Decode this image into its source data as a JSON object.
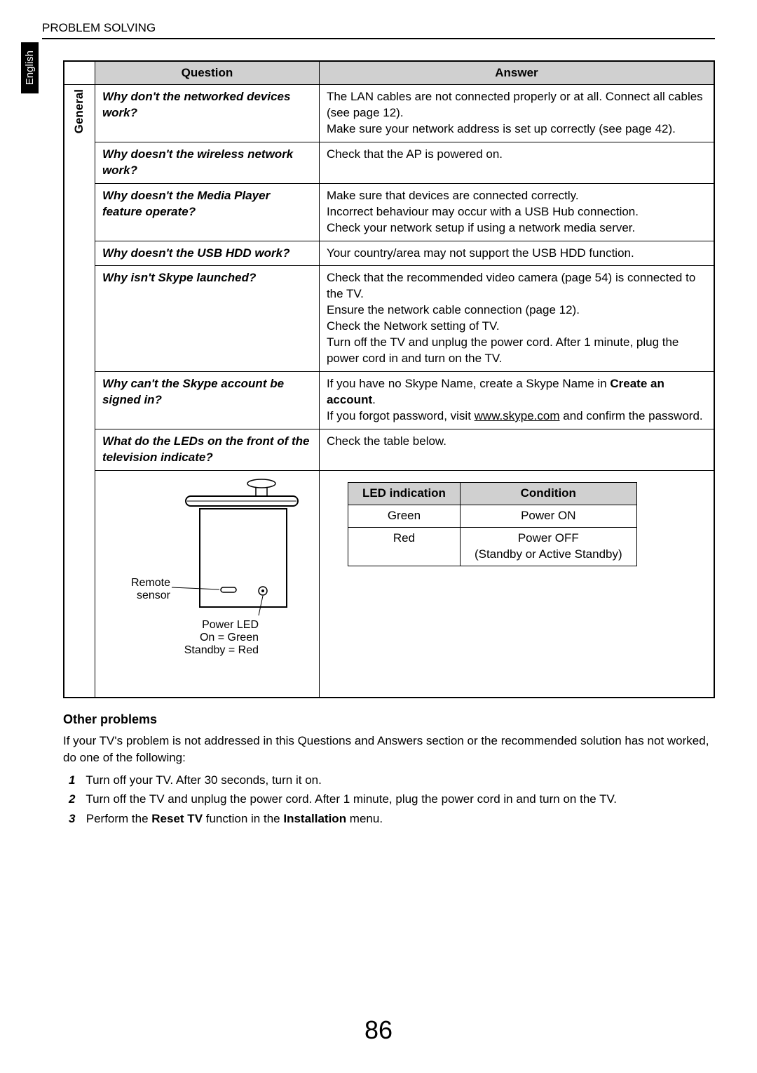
{
  "header": {
    "section": "PROBLEM SOLVING"
  },
  "sideTab": "English",
  "table": {
    "headers": {
      "question": "Question",
      "answer": "Answer"
    },
    "category": "General",
    "rows": [
      {
        "q": "Why don't the networked devices work?",
        "a": "The LAN cables are not connected properly or at all. Connect all cables (see page 12).\nMake sure your network address is set up correctly (see page 42)."
      },
      {
        "q": "Why doesn't the wireless network work?",
        "a": "Check that the AP is powered on."
      },
      {
        "q": "Why doesn't the Media Player feature operate?",
        "a": "Make sure that devices are connected correctly.\nIncorrect behaviour may occur with a USB Hub connection.\nCheck your network setup if using a network media server."
      },
      {
        "q": "Why doesn't the USB HDD work?",
        "a": "Your country/area may not support the USB HDD function."
      },
      {
        "q": "Why isn't Skype launched?",
        "a": "Check that the recommended video camera (page 54) is connected to the TV.\nEnsure the network cable connection (page 12).\nCheck the Network setting of TV.\nTurn off the TV and unplug the power cord. After 1 minute, plug the power cord in and turn on the TV."
      },
      {
        "q": "Why can't the Skype account be signed in?",
        "a_html": "If you have no Skype Name, create a Skype Name in <span class=\"bold\">Create an account</span>.<br>If you forgot password, visit <span class=\"underline\">www.skype.com</span> and confirm the password."
      },
      {
        "q": "What do the LEDs on the front of the television indicate?",
        "a": "Check the table below."
      }
    ],
    "ledTable": {
      "headers": {
        "indication": "LED indication",
        "condition": "Condition"
      },
      "rows": [
        {
          "indication": "Green",
          "condition": "Power ON"
        },
        {
          "indication": "Red",
          "condition": "Power OFF\n(Standby or Active Standby)"
        }
      ]
    },
    "diagram": {
      "remoteLabel": "Remote sensor",
      "ledLabel1": "Power LED",
      "ledLabel2": "On = Green",
      "ledLabel3": "Standby = Red"
    }
  },
  "other": {
    "title": "Other problems",
    "intro": "If your TV's problem is not addressed in this Questions and Answers section or the recommended solution has not worked, do one of the following:",
    "steps": [
      {
        "n": "1",
        "text": "Turn off your TV. After 30 seconds, turn it on."
      },
      {
        "n": "2",
        "text": "Turn off the TV and unplug the power cord. After 1 minute, plug the power cord in and turn on the TV."
      },
      {
        "n": "3",
        "html": "Perform the <span class=\"bold\">Reset TV</span> function in the <span class=\"bold\">Installation</span> menu."
      }
    ]
  },
  "pageNumber": "86"
}
